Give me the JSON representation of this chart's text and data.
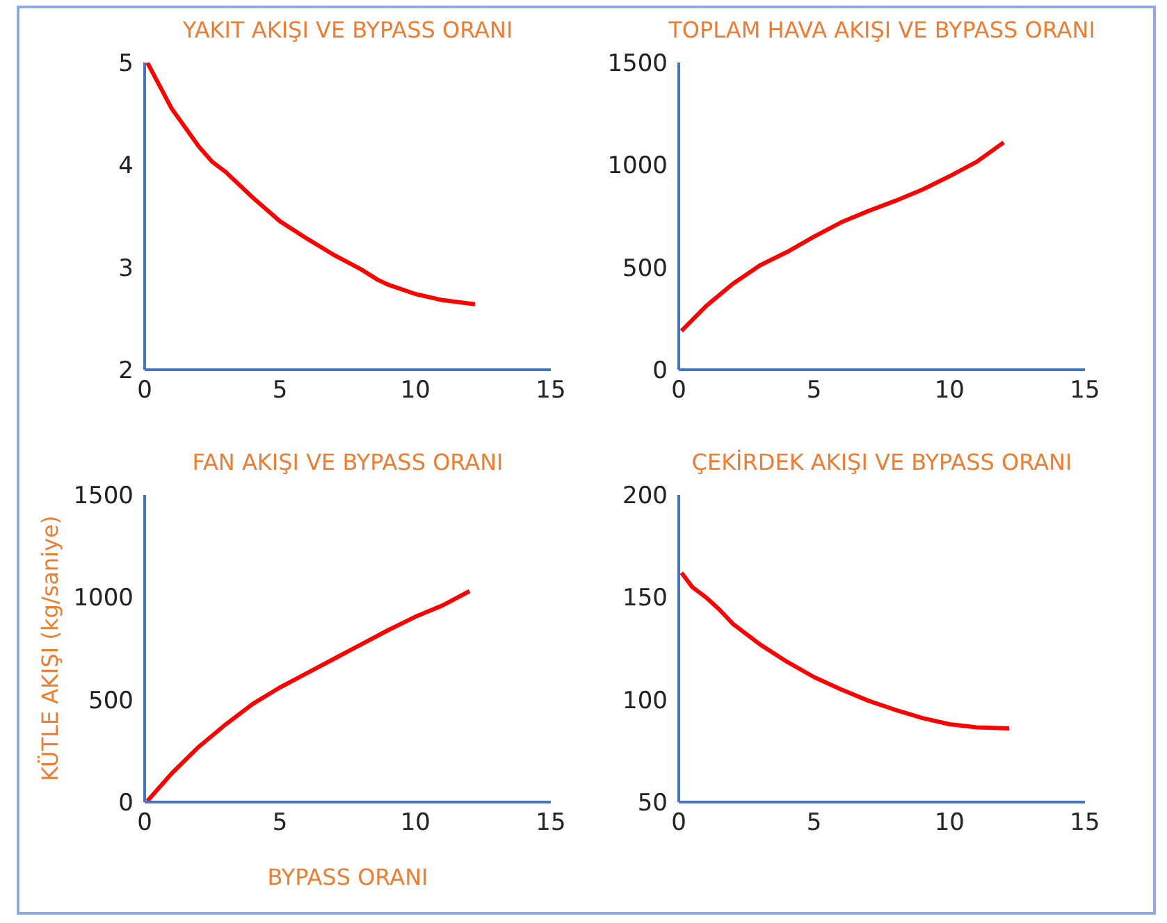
{
  "chart_data": [
    {
      "type": "line",
      "title": "YAKIT AKIŞI VE BYPASS ORANI",
      "x": [
        0.1,
        1,
        2,
        2.5,
        3,
        4,
        5,
        6,
        7,
        8,
        8.6,
        9,
        10,
        11,
        12.2
      ],
      "series": [
        {
          "color": "#ff0000",
          "values": [
            5,
            4.55,
            4.18,
            4.03,
            3.93,
            3.68,
            3.45,
            3.28,
            3.12,
            2.98,
            2.88,
            2.83,
            2.74,
            2.68,
            2.64
          ]
        }
      ],
      "xlim": [
        0,
        15
      ],
      "xticks": [
        0,
        5,
        10,
        15
      ],
      "ylim": [
        2,
        5
      ],
      "yticks": [
        2,
        3,
        4,
        5
      ]
    },
    {
      "type": "line",
      "title": "TOPLAM HAVA AKIŞI VE BYPASS ORANI",
      "x": [
        0.1,
        1,
        2,
        3,
        4,
        5,
        6,
        7,
        8,
        9,
        10,
        11,
        12
      ],
      "series": [
        {
          "color": "#ff0000",
          "values": [
            190,
            310,
            420,
            510,
            575,
            650,
            720,
            775,
            825,
            880,
            945,
            1015,
            1110
          ]
        }
      ],
      "xlim": [
        0,
        15
      ],
      "xticks": [
        0,
        5,
        10,
        15
      ],
      "ylim": [
        0,
        1500
      ],
      "yticks": [
        0,
        500,
        1000,
        1500
      ]
    },
    {
      "type": "line",
      "title": "FAN AKIŞI VE BYPASS ORANI",
      "xlabel": "BYPASS ORANI",
      "ylabel": "KÜTLE AKIŞI (kg/saniye)",
      "x": [
        0.1,
        1,
        2,
        3,
        4,
        5,
        6,
        7,
        8,
        9,
        10,
        11,
        12
      ],
      "series": [
        {
          "color": "#ff0000",
          "values": [
            5,
            140,
            270,
            380,
            480,
            560,
            630,
            700,
            770,
            840,
            905,
            960,
            1030
          ]
        }
      ],
      "xlim": [
        0,
        15
      ],
      "xticks": [
        0,
        5,
        10,
        15
      ],
      "ylim": [
        0,
        1500
      ],
      "yticks": [
        0,
        500,
        1000,
        1500
      ]
    },
    {
      "type": "line",
      "title": "ÇEKİRDEK AKIŞI VE BYPASS ORANI",
      "x": [
        0.1,
        0.5,
        1,
        1.5,
        2,
        3,
        4,
        5,
        6,
        7,
        8,
        9,
        10,
        11,
        12.2
      ],
      "series": [
        {
          "color": "#ff0000",
          "values": [
            162,
            155,
            150,
            144,
            137,
            127,
            118.5,
            111,
            105,
            99.5,
            95,
            91,
            88,
            86.5,
            86
          ]
        }
      ],
      "xlim": [
        0,
        15
      ],
      "xticks": [
        0,
        5,
        10,
        15
      ],
      "ylim": [
        50,
        200
      ],
      "yticks": [
        50,
        100,
        150,
        200
      ]
    }
  ]
}
